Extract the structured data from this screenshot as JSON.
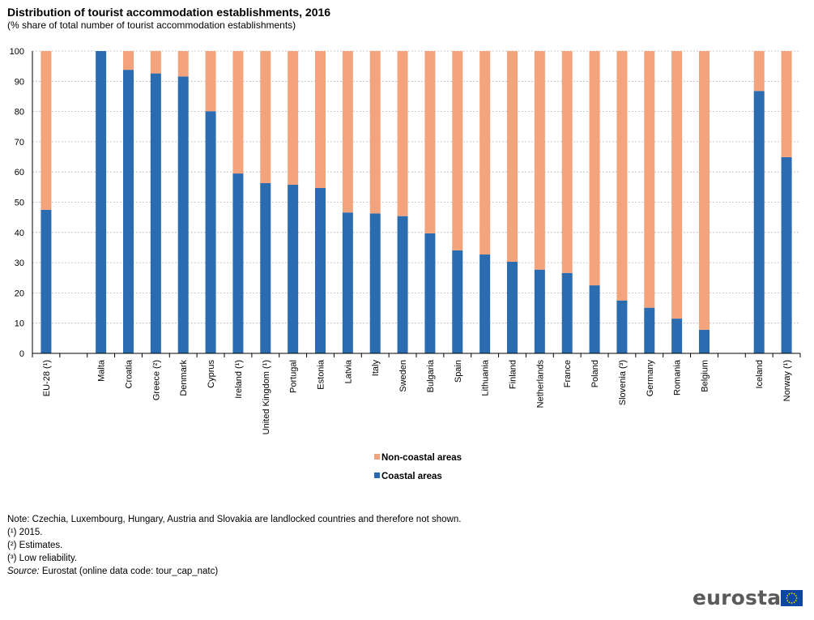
{
  "header": {
    "title": "Distribution of tourist accommodation  establishments, 2016",
    "subtitle": "(% share of total number of tourist accommodation establishments)"
  },
  "chart_data": {
    "type": "bar",
    "stacked": true,
    "categories": [
      "EU-28 (¹)",
      "",
      "Malta",
      "Croatia",
      "Greece (²)",
      "Denmark",
      "Cyprus",
      "Ireland  (¹)",
      "United Kingdom (¹)",
      "Portugal",
      "Estonia",
      "Latvia",
      "Italy",
      "Sweden",
      "Bulgaria",
      "Spain",
      "Lithuania",
      "Finland",
      "Netherlands",
      "France",
      "Poland",
      "Slovenia (³)",
      "Germany",
      "Romania",
      "Belgium",
      "",
      "Iceland",
      "Norway (¹)"
    ],
    "series": [
      {
        "name": "Coastal areas",
        "color": "#2b6cb0",
        "values": [
          47.5,
          null,
          100,
          93.8,
          92.6,
          91.6,
          80.1,
          59.5,
          56.3,
          55.8,
          54.7,
          46.6,
          46.3,
          45.4,
          39.7,
          34.1,
          32.7,
          30.3,
          27.7,
          26.6,
          22.5,
          17.5,
          15.1,
          11.5,
          7.8,
          null,
          86.8,
          64.9
        ]
      },
      {
        "name": "Non-coastal areas",
        "color": "#f4a47c",
        "values": [
          52.5,
          null,
          0,
          6.2,
          7.4,
          8.4,
          19.9,
          40.5,
          43.7,
          44.2,
          45.3,
          53.4,
          53.7,
          54.6,
          60.3,
          65.9,
          67.3,
          69.7,
          72.3,
          73.4,
          77.5,
          82.5,
          84.9,
          88.5,
          92.2,
          null,
          13.2,
          35.1
        ]
      }
    ],
    "ylim": [
      0,
      100
    ],
    "yticks": [
      0,
      10,
      20,
      30,
      40,
      50,
      60,
      70,
      80,
      90,
      100
    ],
    "grid": true,
    "legend_position": "bottom",
    "legend_order": [
      "Non-coastal areas",
      "Coastal areas"
    ]
  },
  "notes": {
    "note": "Note: Czechia, Luxembourg, Hungary, Austria and Slovakia are landlocked countries and therefore not shown.",
    "fn1": "(¹) 2015.",
    "fn2": "(²) Estimates.",
    "fn3": "(³) Low reliability.",
    "source_label": "Source:",
    "source_text": " Eurostat (online data code: tour_cap_natc)"
  },
  "logo": {
    "text": "eurostat",
    "icon": "eu-flag-icon"
  }
}
